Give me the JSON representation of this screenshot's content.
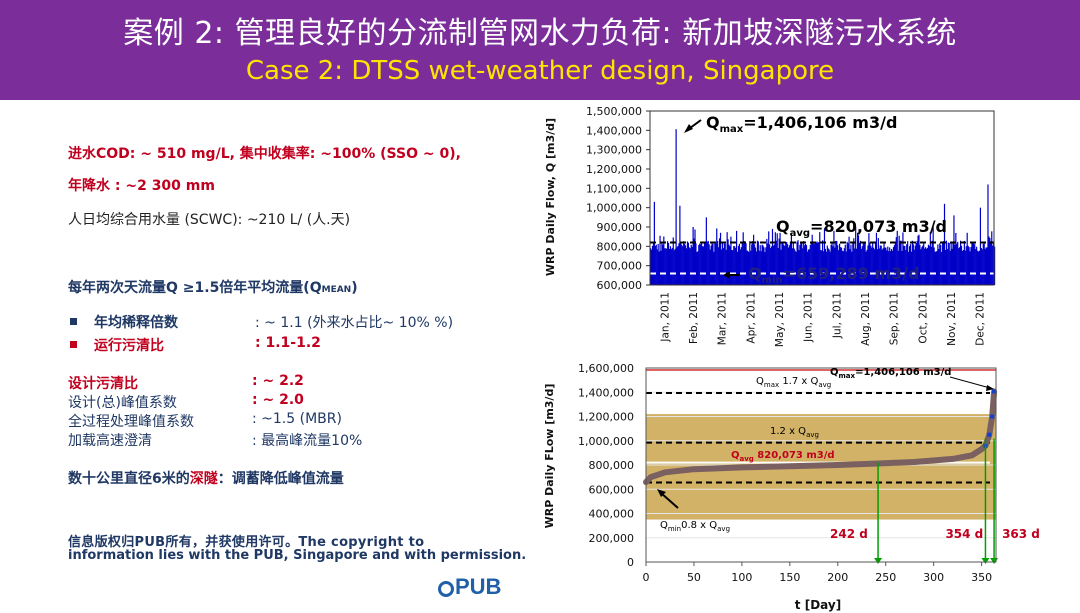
{
  "header": {
    "title_zh": "案例 2: 管理良好的分流制管网水力负荷: 新加坡深隧污水系统",
    "title_en": "Case 2: DTSS wet-weather design, Singapore"
  },
  "left": {
    "line1": "进水COD: ~ 510 mg/L, 集中收集率: ~100% (SSO ~ 0),",
    "line2": "年降水   : ~2 300 mm",
    "line3": "人日均综合用水量 (SCWC): ~210 L/ (人.天)",
    "peak_heading": "每年两次天流量Q ≥1.5倍年平均流量(Q",
    "peak_heading_sub": "MEAN",
    "peak_heading_end": ")",
    "b1_label": "年均稀释倍数",
    "b1_value": ": ~ 1.1 (外来水占比~ 10% %)",
    "b2_label": "运行污清比",
    "b2_value": ": 1.1-1.2",
    "d1_label": "设计污清比",
    "d1_value": ": ~ 2.2",
    "d2_label": "设计(总)峰值系数",
    "d2_value": ": ~ 2.0",
    "d3_label": "全过程处理峰值系数",
    "d3_value": ": ~1.5 (MBR)",
    "d4_label": "加载高速澄清",
    "d4_value": ": 最高峰流量10%",
    "tunnel_a": "数十公里直径6米的",
    "tunnel_b": "深隧",
    "tunnel_c": "：调蓄降低峰值流量",
    "copyright_1": "信息版权归PUB所有，并获使用许可。The copyright to",
    "copyright_2": "information lies with the PUB, Singapore and with permission.",
    "logo": "PUB"
  },
  "colors": {
    "header": "#7b2d9a",
    "title_en": "#ffe400",
    "red": "#c0001e",
    "navy": "#1f3864",
    "bar_blue": "#0000c8",
    "band": "#d2b266",
    "curve": "#7a6060"
  },
  "chart_data": [
    {
      "type": "bar",
      "ylabel": "WRP Daily Flow, Q [m3/d]",
      "ylim": [
        600000,
        1500000
      ],
      "y_ticks": [
        "1,500,000",
        "1,400,000",
        "1,300,000",
        "1,200,000",
        "1,100,000",
        "1,000,000",
        "900,000",
        "800,000",
        "700,000",
        "600,000"
      ],
      "categories": [
        "Jan, 2011",
        "Feb, 2011",
        "Mar, 2011",
        "Apr, 2011",
        "May, 2011",
        "Jun, 2011",
        "Jul, 2011",
        "Aug, 2011",
        "Sep, 2011",
        "Oct, 2011",
        "Nov, 2011",
        "Dec, 2011"
      ],
      "spikes": [
        {
          "day": 5,
          "value": 1030000
        },
        {
          "day": 28,
          "value": 1406106
        },
        {
          "day": 32,
          "value": 1010000
        },
        {
          "day": 46,
          "value": 900000
        },
        {
          "day": 60,
          "value": 950000
        },
        {
          "day": 75,
          "value": 870000
        },
        {
          "day": 92,
          "value": 880000
        },
        {
          "day": 110,
          "value": 860000
        },
        {
          "day": 130,
          "value": 890000
        },
        {
          "day": 150,
          "value": 870000
        },
        {
          "day": 172,
          "value": 860000
        },
        {
          "day": 195,
          "value": 880000
        },
        {
          "day": 218,
          "value": 900000
        },
        {
          "day": 240,
          "value": 870000
        },
        {
          "day": 262,
          "value": 880000
        },
        {
          "day": 285,
          "value": 860000
        },
        {
          "day": 300,
          "value": 900000
        },
        {
          "day": 312,
          "value": 1020000
        },
        {
          "day": 322,
          "value": 960000
        },
        {
          "day": 336,
          "value": 870000
        },
        {
          "day": 350,
          "value": 1000000
        },
        {
          "day": 358,
          "value": 1120000
        }
      ],
      "series": [
        {
          "name": "Qmax",
          "value": 1406106
        },
        {
          "name": "Qavg",
          "value": 820073
        },
        {
          "name": "Qmin",
          "value": 659289
        }
      ],
      "annotations": {
        "qmax_label": "Q",
        "qmax_sub": "max",
        "qmax_value": "=1,406,106 m3/d",
        "qavg_label": "Q",
        "qavg_sub": "avg",
        "qavg_value": "=820,073 m3/d",
        "qmin_label": "Q",
        "qmin_sub": "min",
        "qmin_value": "=659,289 m3/d"
      }
    },
    {
      "type": "line",
      "xlabel": "t [Day]",
      "ylabel": "WRP Daily FLow [m3/d]",
      "xlim": [
        0,
        365
      ],
      "ylim": [
        0,
        1600000
      ],
      "x_ticks": [
        0,
        50,
        100,
        150,
        200,
        250,
        300,
        350
      ],
      "y_ticks": [
        "1,600,000",
        "1,400,000",
        "1,200,000",
        "1,000,000",
        "800,000",
        "600,000",
        "400,000",
        "200,000",
        "0"
      ],
      "curve": [
        {
          "x": 0,
          "y": 659289
        },
        {
          "x": 5,
          "y": 700000
        },
        {
          "x": 20,
          "y": 740000
        },
        {
          "x": 50,
          "y": 765000
        },
        {
          "x": 100,
          "y": 780000
        },
        {
          "x": 150,
          "y": 790000
        },
        {
          "x": 200,
          "y": 800000
        },
        {
          "x": 242,
          "y": 812000
        },
        {
          "x": 280,
          "y": 825000
        },
        {
          "x": 320,
          "y": 850000
        },
        {
          "x": 340,
          "y": 880000
        },
        {
          "x": 350,
          "y": 930000
        },
        {
          "x": 354,
          "y": 960000
        },
        {
          "x": 358,
          "y": 1050000
        },
        {
          "x": 361,
          "y": 1200000
        },
        {
          "x": 363,
          "y": 1406106
        }
      ],
      "hlines": [
        {
          "name": "Qmax",
          "value": 1406106
        },
        {
          "name": "1.7 x Qavg",
          "value": 1394124
        },
        {
          "name": "1.2 x Qavg",
          "value": 984088
        },
        {
          "name": "Qavg",
          "value": 820073
        },
        {
          "name": "0.8 x Qavg",
          "value": 656058
        }
      ],
      "band": [
        350000,
        1220000
      ],
      "ceiling": 1650000,
      "day_marks": [
        {
          "day": 242,
          "label": "242 d"
        },
        {
          "day": 354,
          "label": "354 d"
        },
        {
          "day": 363,
          "label": "363 d"
        }
      ],
      "annotations": {
        "qmax": "Q",
        "qmax_sub": "max",
        "qmax_val": "=1,406,106 m3/d",
        "q17_a": "Q",
        "q17_sub": "max",
        "q17_b": " 1.7 x Q",
        "q17_sub2": "avg",
        "q12": "1.2 x Q",
        "q12_sub": "avg",
        "qavg": "Q",
        "qavg_sub": "avg",
        "qavg_val": " 820,073 m3/d",
        "q08_a": "Q",
        "q08_sub": "min",
        "q08_b": "0.8 x Q",
        "q08_sub2": "avg"
      }
    }
  ]
}
